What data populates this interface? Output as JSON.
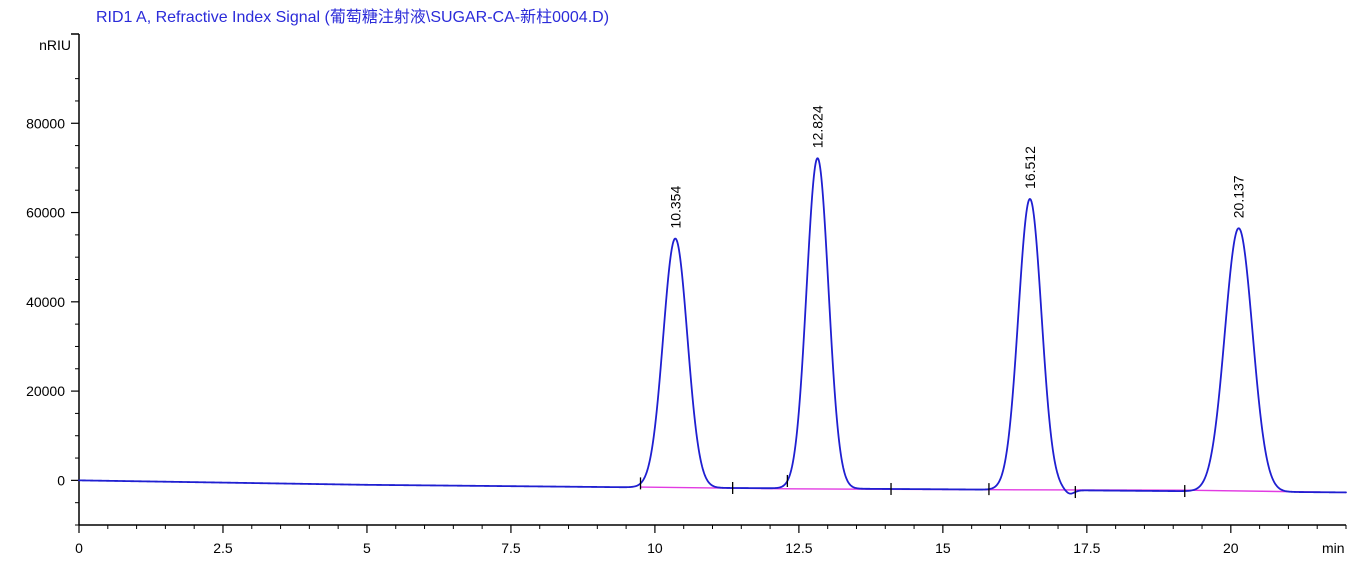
{
  "chart_data": {
    "type": "line",
    "title": "RID1 A, Refractive Index Signal (葡萄糖注射液\\SUGAR-CA-新柱0004.D)",
    "ylabel": "nRIU",
    "xlabel": "min",
    "xlim": [
      0,
      22
    ],
    "ylim": [
      -10000,
      100000
    ],
    "x_ticks": [
      {
        "value": 0,
        "label": "0"
      },
      {
        "value": 2.5,
        "label": "2.5"
      },
      {
        "value": 5,
        "label": "5"
      },
      {
        "value": 7.5,
        "label": "7.5"
      },
      {
        "value": 10,
        "label": "10"
      },
      {
        "value": 12.5,
        "label": "12.5"
      },
      {
        "value": 15,
        "label": "15"
      },
      {
        "value": 17.5,
        "label": "17.5"
      },
      {
        "value": 20,
        "label": "20"
      }
    ],
    "y_ticks": [
      {
        "value": 0,
        "label": "0"
      },
      {
        "value": 20000,
        "label": "20000"
      },
      {
        "value": 40000,
        "label": "40000"
      },
      {
        "value": 60000,
        "label": "60000"
      },
      {
        "value": 80000,
        "label": "80000"
      }
    ],
    "signal_color": "#1f1fd1",
    "baseline_color": "#e23be2",
    "baseline_drift": [
      [
        0,
        0
      ],
      [
        5,
        -1000
      ],
      [
        10,
        -1600
      ],
      [
        15,
        -2000
      ],
      [
        22,
        -2700
      ]
    ],
    "integration_baseline": [
      [
        9.75,
        -1500
      ],
      [
        12.3,
        -1900
      ],
      [
        15.8,
        -2100
      ],
      [
        19.2,
        -2200
      ],
      [
        22,
        -2700
      ]
    ],
    "peaks": [
      {
        "rt": 10.354,
        "label": "10.354",
        "height": 55800,
        "sigma": 0.21
      },
      {
        "rt": 12.824,
        "label": "12.824",
        "height": 74000,
        "sigma": 0.19
      },
      {
        "rt": 16.512,
        "label": "16.512",
        "height": 65200,
        "sigma": 0.2
      },
      {
        "rt": 20.137,
        "label": "20.137",
        "height": 59000,
        "sigma": 0.24
      }
    ],
    "integration_marks": [
      9.75,
      11.35,
      12.3,
      14.1,
      15.8,
      17.3,
      19.2
    ],
    "grid": false,
    "legend": "none"
  }
}
